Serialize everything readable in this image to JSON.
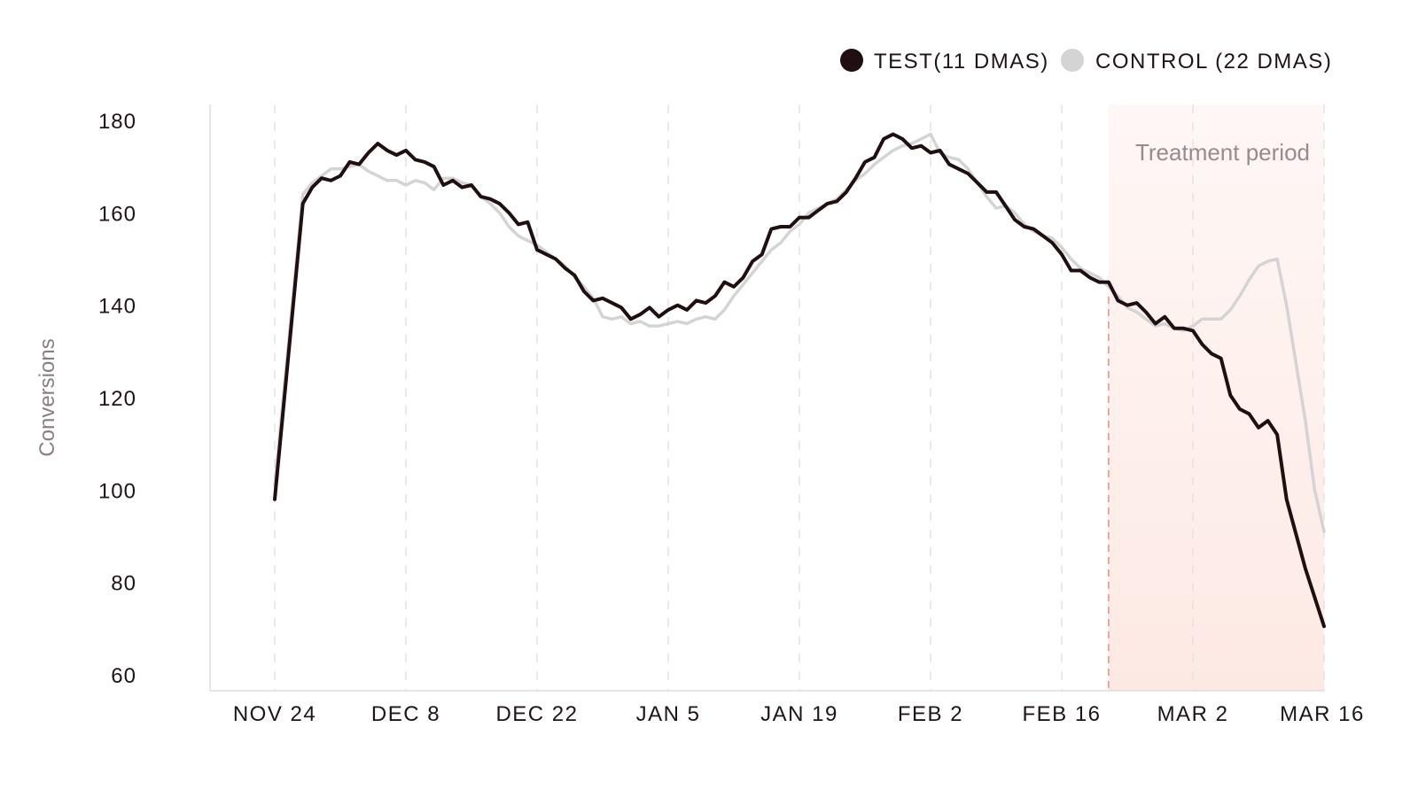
{
  "chart_data": {
    "type": "line",
    "title": "",
    "xlabel": "",
    "ylabel": "Conversions",
    "ylim": [
      60,
      180
    ],
    "yticks": [
      60,
      80,
      100,
      120,
      140,
      160,
      180
    ],
    "x_tick_labels": [
      "NOV 24",
      "DEC 8",
      "DEC 22",
      "JAN 5",
      "JAN 19",
      "FEB 2",
      "FEB 16",
      "MAR 2",
      "MAR 16"
    ],
    "x_tick_days": [
      0,
      14,
      28,
      42,
      56,
      70,
      84,
      98,
      112
    ],
    "grid": "vertical dashed",
    "legend_position": "top-right",
    "annotation": "Treatment period",
    "treatment_start_day": 89,
    "treatment_end_day": 112,
    "colors": {
      "test": "#1f0f10",
      "control": "#d4d4d4",
      "treatment_fill": "#fde9e4",
      "treatment_line": "#e9907d",
      "grid": "#e3e3e3",
      "axis": "#dddddd"
    },
    "series": [
      {
        "name": "TEST(11 DMAS)",
        "key": "test",
        "points": [
          [
            0,
            98
          ],
          [
            3,
            162
          ],
          [
            4,
            165.5
          ],
          [
            5,
            167.5
          ],
          [
            6,
            167
          ],
          [
            7,
            168
          ],
          [
            8,
            171
          ],
          [
            9,
            170.5
          ],
          [
            10,
            173
          ],
          [
            11,
            175
          ],
          [
            12,
            173.5
          ],
          [
            13,
            172.5
          ],
          [
            14,
            173.5
          ],
          [
            15,
            171.5
          ],
          [
            16,
            171
          ],
          [
            17,
            170
          ],
          [
            18,
            166
          ],
          [
            19,
            167
          ],
          [
            20,
            165.5
          ],
          [
            21,
            166
          ],
          [
            22,
            163.5
          ],
          [
            23,
            163
          ],
          [
            24,
            162
          ],
          [
            25,
            160
          ],
          [
            26,
            157.5
          ],
          [
            27,
            158
          ],
          [
            28,
            152
          ],
          [
            29,
            151
          ],
          [
            30,
            150
          ],
          [
            31,
            148
          ],
          [
            32,
            146.5
          ],
          [
            33,
            143
          ],
          [
            34,
            141
          ],
          [
            35,
            141.5
          ],
          [
            36,
            140.5
          ],
          [
            37,
            139.5
          ],
          [
            38,
            137
          ],
          [
            39,
            138
          ],
          [
            40,
            139.5
          ],
          [
            41,
            137.5
          ],
          [
            42,
            139
          ],
          [
            43,
            140
          ],
          [
            44,
            139
          ],
          [
            45,
            141
          ],
          [
            46,
            140.5
          ],
          [
            47,
            142
          ],
          [
            48,
            145
          ],
          [
            49,
            144
          ],
          [
            50,
            146
          ],
          [
            51,
            149.5
          ],
          [
            52,
            151
          ],
          [
            53,
            156.5
          ],
          [
            54,
            157
          ],
          [
            55,
            157
          ],
          [
            56,
            159
          ],
          [
            57,
            159
          ],
          [
            58,
            160.5
          ],
          [
            59,
            162
          ],
          [
            60,
            162.5
          ],
          [
            61,
            164.5
          ],
          [
            62,
            167.5
          ],
          [
            63,
            171
          ],
          [
            64,
            172
          ],
          [
            65,
            176
          ],
          [
            66,
            177
          ],
          [
            67,
            176
          ],
          [
            68,
            174
          ],
          [
            69,
            174.5
          ],
          [
            70,
            173
          ],
          [
            71,
            173.5
          ],
          [
            72,
            170.5
          ],
          [
            73,
            169.5
          ],
          [
            74,
            168.5
          ],
          [
            75,
            166.5
          ],
          [
            76,
            164.5
          ],
          [
            77,
            164.5
          ],
          [
            78,
            161.5
          ],
          [
            79,
            158.5
          ],
          [
            80,
            157
          ],
          [
            81,
            156.5
          ],
          [
            82,
            155
          ],
          [
            83,
            153.5
          ],
          [
            84,
            151
          ],
          [
            85,
            147.5
          ],
          [
            86,
            147.5
          ],
          [
            87,
            146
          ],
          [
            88,
            145
          ],
          [
            89,
            145
          ],
          [
            90,
            141
          ],
          [
            91,
            140
          ],
          [
            92,
            140.5
          ],
          [
            93,
            138.5
          ],
          [
            94,
            136
          ],
          [
            95,
            137.5
          ],
          [
            96,
            135
          ],
          [
            97,
            135
          ],
          [
            98,
            134.5
          ],
          [
            99,
            131.5
          ],
          [
            100,
            129.5
          ],
          [
            101,
            128.5
          ],
          [
            102,
            120.5
          ],
          [
            103,
            117.5
          ],
          [
            104,
            116.5
          ],
          [
            105,
            113.5
          ],
          [
            106,
            115
          ],
          [
            107,
            112
          ],
          [
            108,
            98
          ],
          [
            110,
            83
          ],
          [
            112,
            70.5
          ]
        ]
      },
      {
        "name": "CONTROL (22 DMAS)",
        "key": "control",
        "points": [
          [
            0,
            101
          ],
          [
            3,
            164
          ],
          [
            4,
            166.5
          ],
          [
            5,
            168
          ],
          [
            6,
            169.5
          ],
          [
            7,
            169.5
          ],
          [
            8,
            170
          ],
          [
            9,
            170.5
          ],
          [
            10,
            169
          ],
          [
            11,
            168
          ],
          [
            12,
            167
          ],
          [
            13,
            167
          ],
          [
            14,
            166
          ],
          [
            15,
            167
          ],
          [
            16,
            166.5
          ],
          [
            17,
            165
          ],
          [
            18,
            167.5
          ],
          [
            19,
            167.5
          ],
          [
            20,
            166.5
          ],
          [
            21,
            166
          ],
          [
            22,
            163.5
          ],
          [
            23,
            162
          ],
          [
            24,
            160
          ],
          [
            25,
            157
          ],
          [
            26,
            155
          ],
          [
            27,
            154
          ],
          [
            28,
            153
          ],
          [
            29,
            151.5
          ],
          [
            30,
            150
          ],
          [
            31,
            148.5
          ],
          [
            32,
            146
          ],
          [
            33,
            144
          ],
          [
            34,
            141.5
          ],
          [
            35,
            137.5
          ],
          [
            36,
            137
          ],
          [
            37,
            137.5
          ],
          [
            38,
            136
          ],
          [
            39,
            136.5
          ],
          [
            40,
            135.5
          ],
          [
            41,
            135.5
          ],
          [
            42,
            136
          ],
          [
            43,
            136.5
          ],
          [
            44,
            136
          ],
          [
            45,
            137
          ],
          [
            46,
            137.5
          ],
          [
            47,
            137
          ],
          [
            48,
            139
          ],
          [
            49,
            142
          ],
          [
            50,
            144.5
          ],
          [
            51,
            147
          ],
          [
            52,
            149.5
          ],
          [
            53,
            152
          ],
          [
            54,
            153.5
          ],
          [
            55,
            156
          ],
          [
            56,
            157.5
          ],
          [
            57,
            160
          ],
          [
            58,
            161
          ],
          [
            59,
            162
          ],
          [
            60,
            163
          ],
          [
            61,
            165
          ],
          [
            62,
            167
          ],
          [
            63,
            168.5
          ],
          [
            64,
            170.5
          ],
          [
            65,
            172
          ],
          [
            66,
            173.5
          ],
          [
            67,
            174.5
          ],
          [
            68,
            175
          ],
          [
            69,
            176
          ],
          [
            70,
            177
          ],
          [
            71,
            173
          ],
          [
            72,
            172
          ],
          [
            73,
            171.5
          ],
          [
            74,
            169.5
          ],
          [
            75,
            166.5
          ],
          [
            76,
            163.5
          ],
          [
            77,
            161
          ],
          [
            78,
            161.5
          ],
          [
            79,
            160
          ],
          [
            80,
            157.5
          ],
          [
            81,
            156
          ],
          [
            82,
            155
          ],
          [
            83,
            154.5
          ],
          [
            84,
            152.5
          ],
          [
            85,
            150
          ],
          [
            86,
            148
          ],
          [
            87,
            147
          ],
          [
            88,
            146
          ],
          [
            89,
            144
          ],
          [
            90,
            142
          ],
          [
            91,
            139.5
          ],
          [
            92,
            138.5
          ],
          [
            93,
            137
          ],
          [
            94,
            135.5
          ],
          [
            95,
            136
          ],
          [
            96,
            135
          ],
          [
            97,
            134.5
          ],
          [
            98,
            135.5
          ],
          [
            99,
            137
          ],
          [
            100,
            137
          ],
          [
            101,
            137
          ],
          [
            102,
            139
          ],
          [
            103,
            142
          ],
          [
            104,
            145.5
          ],
          [
            105,
            148.5
          ],
          [
            106,
            149.5
          ],
          [
            107,
            150
          ],
          [
            108,
            140
          ],
          [
            110,
            115
          ],
          [
            111,
            100
          ],
          [
            112,
            91
          ]
        ]
      }
    ]
  }
}
